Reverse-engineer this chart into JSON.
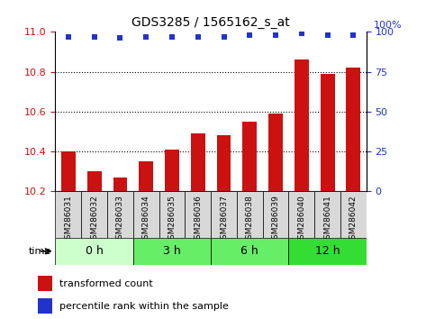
{
  "title": "GDS3285 / 1565162_s_at",
  "categories": [
    "GSM286031",
    "GSM286032",
    "GSM286033",
    "GSM286034",
    "GSM286035",
    "GSM286036",
    "GSM286037",
    "GSM286038",
    "GSM286039",
    "GSM286040",
    "GSM286041",
    "GSM286042"
  ],
  "bar_values": [
    10.4,
    10.3,
    10.27,
    10.35,
    10.41,
    10.49,
    10.48,
    10.55,
    10.59,
    10.86,
    10.79,
    10.82
  ],
  "percentile_values": [
    97,
    97,
    96,
    97,
    97,
    97,
    97,
    98,
    98,
    99,
    98,
    98
  ],
  "bar_color": "#cc1111",
  "percentile_color": "#2233cc",
  "ylim_left": [
    10.2,
    11.0
  ],
  "ylim_right": [
    0,
    100
  ],
  "yticks_left": [
    10.2,
    10.4,
    10.6,
    10.8,
    11.0
  ],
  "yticks_right": [
    0,
    25,
    50,
    75,
    100
  ],
  "grid_yticks": [
    10.4,
    10.6,
    10.8
  ],
  "time_groups": [
    {
      "label": "0 h",
      "start": 0,
      "end": 3,
      "color": "#ccffcc"
    },
    {
      "label": "3 h",
      "start": 3,
      "end": 6,
      "color": "#66ee66"
    },
    {
      "label": "6 h",
      "start": 6,
      "end": 9,
      "color": "#66ee66"
    },
    {
      "label": "12 h",
      "start": 9,
      "end": 12,
      "color": "#33dd33"
    }
  ],
  "legend_bar_label": "transformed count",
  "legend_pct_label": "percentile rank within the sample",
  "time_label": "time",
  "xtick_bg": "#d8d8d8",
  "background_color": "#ffffff",
  "yaxis_left_color": "#cc1111",
  "yaxis_right_color": "#2233cc"
}
